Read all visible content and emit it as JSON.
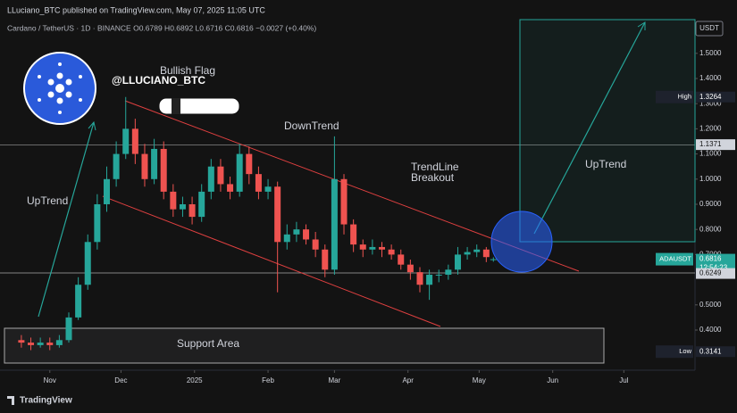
{
  "chart_data": {
    "type": "candlestick",
    "header": "LLuciano_BTC published on TradingView.com, May 07, 2025 11:05 UTC",
    "legend": "Cardano / TetherUS · 1D · BINANCE  O0.6789  H0.6892  L0.6716  C0.6816  −0.0027 (+0.40%)",
    "currency": "USDT",
    "annotations": {
      "flag": "Bullish Flag",
      "handle": "@LLUCIANO_BTC",
      "downtrend": "DownTrend",
      "breakout1": "TrendLine",
      "breakout2": "Breakout",
      "uptrend_left": "UpTrend",
      "uptrend_right": "UpTrend",
      "support": "Support Area"
    },
    "footer": "TradingView",
    "x": [
      -12,
      -8,
      -4,
      0,
      4,
      8,
      12,
      16,
      20,
      24,
      28,
      32,
      36,
      40,
      44,
      48,
      52,
      56,
      60,
      64,
      68,
      72,
      76,
      80,
      84,
      88,
      92,
      96,
      100,
      104,
      108,
      112,
      116,
      120,
      124,
      128,
      132,
      136,
      140,
      144,
      148,
      152,
      156,
      160,
      164,
      168,
      172,
      176,
      180,
      184,
      187
    ],
    "open": [
      0.36,
      0.35,
      0.34,
      0.35,
      0.34,
      0.36,
      0.45,
      0.58,
      0.75,
      0.9,
      1.0,
      1.1,
      1.2,
      1.1,
      1.0,
      1.12,
      0.95,
      0.88,
      0.9,
      0.85,
      0.95,
      1.05,
      0.98,
      0.95,
      1.1,
      1.02,
      0.95,
      0.97,
      0.75,
      0.78,
      0.8,
      0.76,
      0.72,
      0.64,
      1.0,
      0.82,
      0.74,
      0.72,
      0.73,
      0.72,
      0.7,
      0.66,
      0.63,
      0.58,
      0.62,
      0.62,
      0.64,
      0.7,
      0.71,
      0.72,
      0.6789
    ],
    "high": [
      0.38,
      0.37,
      0.37,
      0.37,
      0.38,
      0.47,
      0.61,
      0.78,
      0.94,
      1.05,
      1.15,
      1.3264,
      1.24,
      1.14,
      1.16,
      1.15,
      0.98,
      0.93,
      0.93,
      0.98,
      1.08,
      1.08,
      1.01,
      1.14,
      1.13,
      1.05,
      1.0,
      0.99,
      0.82,
      0.83,
      0.82,
      0.79,
      0.74,
      1.17,
      1.02,
      0.84,
      0.76,
      0.76,
      0.75,
      0.74,
      0.72,
      0.68,
      0.65,
      0.64,
      0.64,
      0.66,
      0.73,
      0.73,
      0.74,
      0.73,
      0.6892
    ],
    "low": [
      0.33,
      0.32,
      0.33,
      0.32,
      0.33,
      0.35,
      0.44,
      0.56,
      0.72,
      0.87,
      0.97,
      1.08,
      1.06,
      0.97,
      0.98,
      0.92,
      0.85,
      0.85,
      0.82,
      0.83,
      0.92,
      0.95,
      0.92,
      0.93,
      0.98,
      0.92,
      0.92,
      0.55,
      0.72,
      0.75,
      0.74,
      0.69,
      0.61,
      0.62,
      0.78,
      0.71,
      0.69,
      0.7,
      0.69,
      0.68,
      0.64,
      0.6,
      0.55,
      0.52,
      0.59,
      0.6,
      0.62,
      0.68,
      0.69,
      0.67,
      0.6716
    ],
    "close": [
      0.35,
      0.34,
      0.35,
      0.34,
      0.36,
      0.45,
      0.58,
      0.75,
      0.9,
      1.0,
      1.1,
      1.2,
      1.1,
      1.0,
      1.12,
      0.95,
      0.88,
      0.9,
      0.85,
      0.95,
      1.05,
      0.98,
      0.95,
      1.1,
      1.02,
      0.95,
      0.97,
      0.75,
      0.78,
      0.8,
      0.76,
      0.72,
      0.64,
      1.0,
      0.82,
      0.74,
      0.72,
      0.73,
      0.72,
      0.7,
      0.66,
      0.63,
      0.58,
      0.62,
      0.62,
      0.64,
      0.7,
      0.71,
      0.72,
      0.69,
      0.6816
    ],
    "up_color": "#26a69a",
    "down_color": "#ef5350",
    "xlim": [
      -21,
      272
    ],
    "xticks": [
      {
        "value": 0,
        "label": "Nov"
      },
      {
        "value": 30,
        "label": "Dec"
      },
      {
        "value": 61,
        "label": "2025"
      },
      {
        "value": 92,
        "label": "Feb"
      },
      {
        "value": 120,
        "label": "Mar"
      },
      {
        "value": 151,
        "label": "Apr"
      },
      {
        "value": 181,
        "label": "May"
      },
      {
        "value": 212,
        "label": "Jun"
      },
      {
        "value": 242,
        "label": "Jul"
      }
    ],
    "ylim": [
      0.2404,
      1.634
    ],
    "yticks": [
      {
        "value": 1.5,
        "label": "1.5000"
      },
      {
        "value": 1.4,
        "label": "1.4000"
      },
      {
        "value": 1.3,
        "label": "1.3000"
      },
      {
        "value": 1.2,
        "label": "1.2000"
      },
      {
        "value": 1.1,
        "label": "1.1000"
      },
      {
        "value": 1.0,
        "label": "1.0000"
      },
      {
        "value": 0.9,
        "label": "0.9000"
      },
      {
        "value": 0.8,
        "label": "0.8000"
      },
      {
        "value": 0.7,
        "label": "0.7000"
      },
      {
        "value": 0.5,
        "label": "0.5000"
      },
      {
        "value": 0.4,
        "label": "0.4000"
      }
    ],
    "price_labels": [
      {
        "tag": "High",
        "value": 1.3264,
        "color": "#2a2e39"
      },
      {
        "value": 1.1371,
        "color": "#d1d4dc"
      },
      {
        "tag": "ADAUSDT",
        "value": 0.6816,
        "countdown": "12:54:23",
        "color": "#26a69a"
      },
      {
        "value": 0.6249,
        "color": "#d1d4dc"
      },
      {
        "tag": "Low",
        "value": 0.3141,
        "color": "#2a2e39"
      }
    ]
  }
}
